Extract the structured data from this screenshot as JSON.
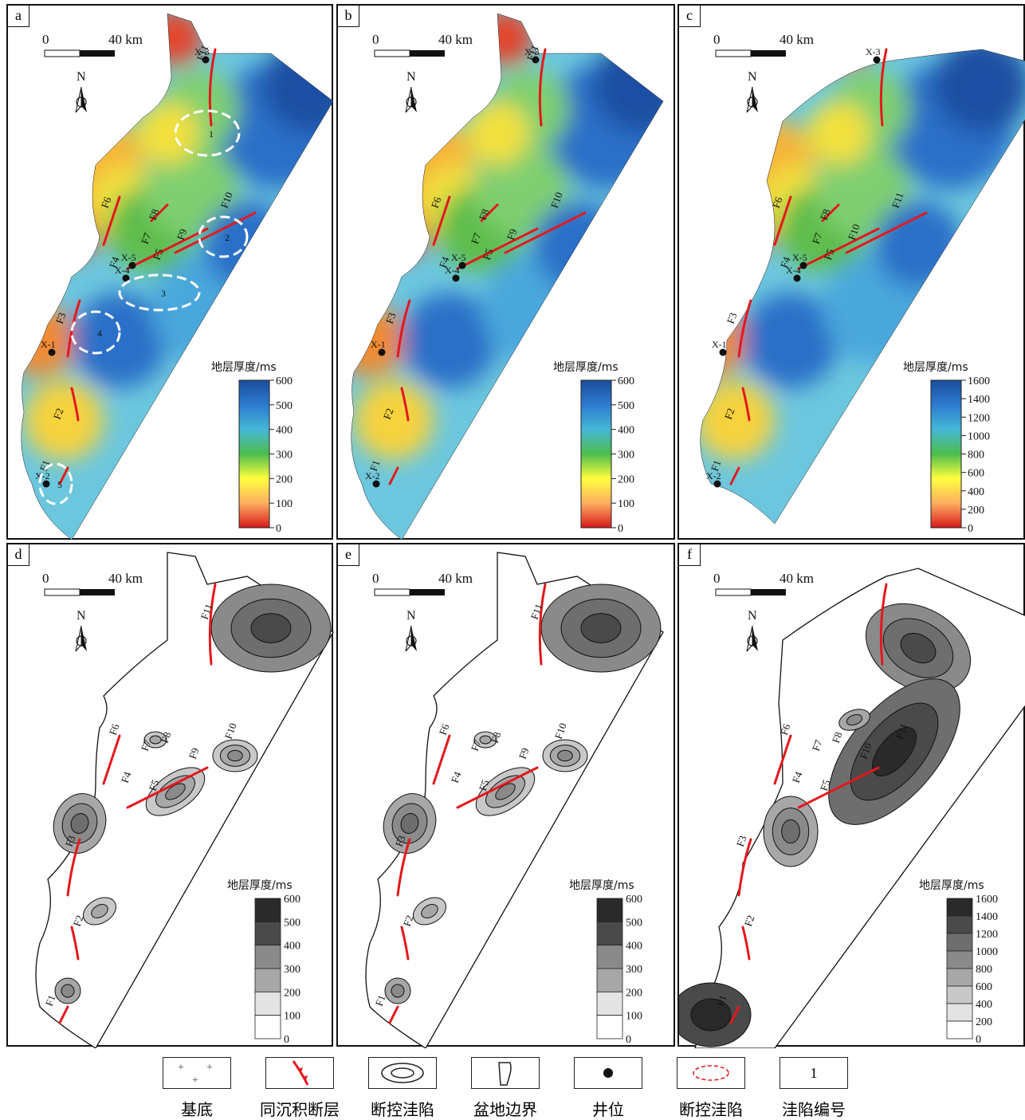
{
  "scale_bar": {
    "zero": "0",
    "dist": "40 km"
  },
  "north": "N",
  "thickness_title": "地层厚度/ms",
  "panels": [
    {
      "id": "a",
      "type": "color",
      "ticks": [
        "600",
        "500",
        "400",
        "300",
        "200",
        "100",
        "0"
      ],
      "faults": [
        "F1",
        "F2",
        "F3",
        "F4",
        "F5",
        "F6",
        "F7",
        "F8",
        "F9",
        "F10",
        "F11"
      ],
      "wells": [
        "X-1",
        "X-2",
        "X-3",
        "X-4",
        "X-5"
      ],
      "traps": [
        "1",
        "2",
        "3",
        "4",
        "5"
      ]
    },
    {
      "id": "b",
      "type": "color",
      "ticks": [
        "600",
        "500",
        "400",
        "300",
        "200",
        "100",
        "0"
      ],
      "faults": [
        "F1",
        "F2",
        "F3",
        "F4",
        "F5",
        "F6",
        "F7",
        "F8",
        "F9",
        "F10",
        "F11"
      ],
      "wells": [
        "X-1",
        "X-2",
        "X-3",
        "X-4",
        "X-5"
      ]
    },
    {
      "id": "c",
      "type": "color",
      "ticks": [
        "1600",
        "1400",
        "1200",
        "1000",
        "800",
        "600",
        "400",
        "200",
        "0"
      ],
      "faults": [
        "F1",
        "F2",
        "F3",
        "F4",
        "F5",
        "F6",
        "F7",
        "F8",
        "F10",
        "F11"
      ],
      "wells": [
        "X-1",
        "X-2",
        "X-3",
        "X-4",
        "X-5"
      ]
    },
    {
      "id": "d",
      "type": "gray",
      "ticks": [
        "600",
        "500",
        "400",
        "300",
        "200",
        "100",
        "0"
      ],
      "faults": [
        "F1",
        "F2",
        "F3",
        "F4",
        "F5",
        "F6",
        "F7",
        "F8",
        "F9",
        "F10",
        "F11"
      ]
    },
    {
      "id": "e",
      "type": "gray",
      "ticks": [
        "600",
        "500",
        "400",
        "300",
        "200",
        "100",
        "0"
      ],
      "faults": [
        "F1",
        "F2",
        "F3",
        "F4",
        "F5",
        "F6",
        "F7",
        "F8",
        "F9",
        "F10",
        "F11"
      ]
    },
    {
      "id": "f",
      "type": "gray",
      "ticks": [
        "1600",
        "1400",
        "1200",
        "1000",
        "800",
        "600",
        "400",
        "200",
        "0"
      ],
      "faults": [
        "F1",
        "F2",
        "F3",
        "F4",
        "F5",
        "F6",
        "F7",
        "F8",
        "F10",
        "F11"
      ]
    }
  ],
  "color_scale": [
    "#d7191c",
    "#fdae61",
    "#ffff3f",
    "#4dbd4a",
    "#45b7d6",
    "#2c7bd0",
    "#1a4c9c"
  ],
  "gray_scale": [
    "#ffffff",
    "#e3e3e3",
    "#c8c8c8",
    "#a7a7a7",
    "#8a8a8a",
    "#6e6e6e",
    "#4a4a4a",
    "#2a2a2a"
  ],
  "legend": [
    {
      "name": "basement",
      "label": "基底"
    },
    {
      "name": "syndepositional-fault",
      "label": "同沉积断层"
    },
    {
      "name": "fault-controlled-depression",
      "label": "断控洼陷"
    },
    {
      "name": "basin-boundary",
      "label": "盆地边界"
    },
    {
      "name": "well-location",
      "label": "井位"
    },
    {
      "name": "fault-controlled-depression-dashed",
      "label": "断控洼陷"
    },
    {
      "name": "depression-number",
      "label": "洼陷编号",
      "symbol": "1"
    }
  ]
}
